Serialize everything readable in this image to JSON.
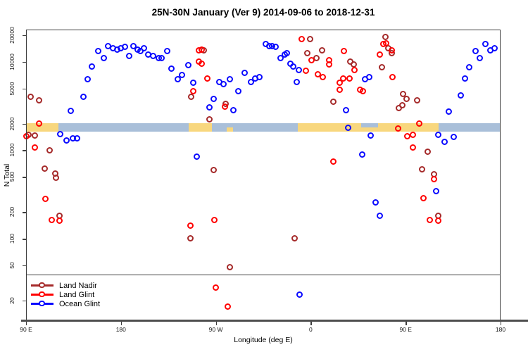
{
  "chart_data": {
    "type": "scatter",
    "title": "25N-30N January (Ver 9)   2014-09-06 to 2018-12-31",
    "xlabel": "Longitude (deg E)",
    "ylabel": "N Total",
    "legend_position": "bottom-left",
    "grid": false,
    "x_axis": {
      "range_deg_east": [
        90,
        540
      ],
      "ticks": [
        {
          "lon": 90,
          "label": "90 E"
        },
        {
          "lon": 180,
          "label": "180"
        },
        {
          "lon": 270,
          "label": "90 W"
        },
        {
          "lon": 360,
          "label": "0"
        },
        {
          "lon": 450,
          "label": "90 E"
        },
        {
          "lon": 540,
          "label": "180"
        }
      ]
    },
    "y_axis": {
      "scale": "log",
      "ticks": [
        20000,
        10000,
        5000,
        2000,
        1000,
        500,
        200,
        100,
        50,
        20
      ],
      "range": [
        12,
        23000
      ]
    },
    "surface_band": {
      "description": "land/ocean surface strip near N=2000",
      "value_top": 2030,
      "value_bottom": 1630,
      "colors": {
        "land": "#F8D77E",
        "ocean": "#A9BFD9"
      },
      "segments": [
        {
          "surface": "land",
          "from": 90,
          "to": 121
        },
        {
          "surface": "ocean",
          "from": 121,
          "to": 244
        },
        {
          "surface": "land",
          "from": 244,
          "to": 266
        },
        {
          "surface": "ocean",
          "from": 266,
          "to": 348
        },
        {
          "surface": "land",
          "from": 348,
          "to": 481
        },
        {
          "surface": "ocean",
          "from": 481,
          "to": 540
        }
      ],
      "patches": [
        {
          "surface": "ocean",
          "from": 408,
          "to": 424,
          "half": "top"
        },
        {
          "surface": "land",
          "from": 280,
          "to": 286,
          "half": "bottom"
        }
      ]
    },
    "series": [
      {
        "name": "Land Nadir",
        "color": "#A52A2A",
        "points": [
          [
            95,
            4000
          ],
          [
            103,
            3650
          ],
          [
            93,
            1470
          ],
          [
            99,
            1450
          ],
          [
            113,
            980
          ],
          [
            108,
            610
          ],
          [
            118,
            540
          ],
          [
            119,
            485
          ],
          [
            122,
            180
          ],
          [
            246,
            100
          ],
          [
            284,
            47
          ],
          [
            264,
            2200
          ],
          [
            268,
            590
          ],
          [
            247,
            4000
          ],
          [
            259,
            13400
          ],
          [
            280,
            3300
          ],
          [
            345,
            100
          ],
          [
            360,
            17800
          ],
          [
            357,
            12500
          ],
          [
            371,
            13400
          ],
          [
            366,
            11000
          ],
          [
            398,
            10000
          ],
          [
            401,
            9300
          ],
          [
            382,
            3500
          ],
          [
            431,
            19000
          ],
          [
            428,
            8600
          ],
          [
            434,
            14000
          ],
          [
            437,
            12500
          ],
          [
            448,
            4300
          ],
          [
            451,
            3800
          ],
          [
            461,
            3650
          ],
          [
            447,
            3200
          ],
          [
            444,
            2950
          ],
          [
            471,
            950
          ],
          [
            466,
            600
          ],
          [
            477,
            530
          ],
          [
            481,
            180
          ]
        ]
      },
      {
        "name": "Land Glint",
        "color": "#FF0000",
        "points": [
          [
            103,
            2000
          ],
          [
            91,
            1420
          ],
          [
            99,
            1070
          ],
          [
            109,
            280
          ],
          [
            115,
            160
          ],
          [
            122,
            158
          ],
          [
            269,
            160
          ],
          [
            246,
            138
          ],
          [
            270,
            28
          ],
          [
            282,
            17
          ],
          [
            262,
            6400
          ],
          [
            254,
            13300
          ],
          [
            257,
            13500
          ],
          [
            254,
            10000
          ],
          [
            257,
            9500
          ],
          [
            249,
            4600
          ],
          [
            279,
            3100
          ],
          [
            382,
            740
          ],
          [
            352,
            18000
          ],
          [
            356,
            7800
          ],
          [
            361,
            10300
          ],
          [
            367,
            7100
          ],
          [
            372,
            6600
          ],
          [
            378,
            10300
          ],
          [
            378,
            9300
          ],
          [
            392,
            13000
          ],
          [
            388,
            5700
          ],
          [
            391,
            6400
          ],
          [
            397,
            6400
          ],
          [
            388,
            4800
          ],
          [
            402,
            8000
          ],
          [
            407,
            4800
          ],
          [
            410,
            4600
          ],
          [
            429,
            15700
          ],
          [
            432,
            16000
          ],
          [
            426,
            12000
          ],
          [
            437,
            13400
          ],
          [
            438,
            6600
          ],
          [
            463,
            2000
          ],
          [
            443,
            1750
          ],
          [
            452,
            1420
          ],
          [
            457,
            1470
          ],
          [
            457,
            1070
          ],
          [
            467,
            285
          ],
          [
            473,
            160
          ],
          [
            481,
            158
          ],
          [
            477,
            470
          ]
        ]
      },
      {
        "name": "Ocean Glint",
        "color": "#0A0AFF",
        "points": [
          [
            123,
            1500
          ],
          [
            129,
            1280
          ],
          [
            135,
            1350
          ],
          [
            139,
            1350
          ],
          [
            133,
            2750
          ],
          [
            145,
            4000
          ],
          [
            149,
            6300
          ],
          [
            153,
            8800
          ],
          [
            159,
            13000
          ],
          [
            164,
            11000
          ],
          [
            168,
            15000
          ],
          [
            173,
            14000
          ],
          [
            177,
            13500
          ],
          [
            180,
            14000
          ],
          [
            184,
            14500
          ],
          [
            188,
            11500
          ],
          [
            192,
            15000
          ],
          [
            196,
            13500
          ],
          [
            199,
            13000
          ],
          [
            202,
            14000
          ],
          [
            206,
            12000
          ],
          [
            211,
            11600
          ],
          [
            216,
            11000
          ],
          [
            219,
            11000
          ],
          [
            224,
            13000
          ],
          [
            228,
            8300
          ],
          [
            234,
            6300
          ],
          [
            238,
            7000
          ],
          [
            244,
            9000
          ],
          [
            249,
            5700
          ],
          [
            264,
            3000
          ],
          [
            268,
            3800
          ],
          [
            274,
            5800
          ],
          [
            278,
            5500
          ],
          [
            284,
            6300
          ],
          [
            292,
            4600
          ],
          [
            287,
            2800
          ],
          [
            298,
            7400
          ],
          [
            304,
            5800
          ],
          [
            308,
            6400
          ],
          [
            312,
            6600
          ],
          [
            252,
            840
          ],
          [
            318,
            15700
          ],
          [
            321,
            15000
          ],
          [
            324,
            15000
          ],
          [
            327,
            14500
          ],
          [
            332,
            11000
          ],
          [
            336,
            12000
          ],
          [
            338,
            12500
          ],
          [
            341,
            9500
          ],
          [
            344,
            8800
          ],
          [
            349,
            8000
          ],
          [
            347,
            5900
          ],
          [
            394,
            2800
          ],
          [
            396,
            1780
          ],
          [
            412,
            6300
          ],
          [
            416,
            6600
          ],
          [
            417,
            1450
          ],
          [
            409,
            890
          ],
          [
            422,
            255
          ],
          [
            426,
            180
          ],
          [
            350,
            23
          ],
          [
            479,
            340
          ],
          [
            481,
            1470
          ],
          [
            487,
            1240
          ],
          [
            496,
            1400
          ],
          [
            491,
            2700
          ],
          [
            503,
            4100
          ],
          [
            507,
            6400
          ],
          [
            511,
            8600
          ],
          [
            517,
            13000
          ],
          [
            521,
            11000
          ],
          [
            526,
            15700
          ],
          [
            531,
            13400
          ],
          [
            535,
            14000
          ]
        ]
      }
    ]
  }
}
